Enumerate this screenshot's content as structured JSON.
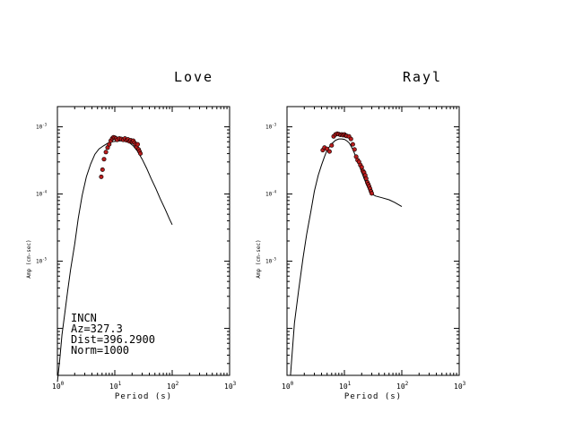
{
  "chart_data": [
    {
      "type": "scatter",
      "title": "Love",
      "xlabel": "Period (s)",
      "ylabel": "Amp (cm-sec)",
      "x_scale": "log",
      "y_scale": "log",
      "xlim": [
        1,
        1000
      ],
      "ylim": [
        2e-07,
        0.002
      ],
      "x_ticks": [
        "10",
        "10",
        "10",
        "10"
      ],
      "x_tick_exps": [
        "0",
        "1",
        "2",
        "3"
      ],
      "y_ticks": [
        "10",
        "10",
        "10"
      ],
      "y_tick_exps": [
        "-3",
        "-4",
        "-5"
      ],
      "annotations": [
        "INCN",
        "Az=327.3",
        "Dist=396.2900",
        "Norm=1000"
      ],
      "marker_color": "#b81c1c",
      "line_color": "#000000",
      "series": [
        {
          "kind": "line",
          "x": [
            1.0,
            1.1,
            1.2,
            1.35,
            1.5,
            1.7,
            2.0,
            2.3,
            2.7,
            3.2,
            3.8,
            4.5,
            5.3,
            6.3,
            7.5,
            9.0,
            10.5,
            12.5,
            15,
            18,
            21,
            25,
            30,
            36,
            43,
            52,
            62,
            75,
            90,
            100
          ],
          "y": [
            1.6e-07,
            3.4e-07,
            8e-07,
            1.7e-06,
            3.5e-06,
            7.5e-06,
            1.8e-05,
            4.3e-05,
            9.5e-05,
            0.00018,
            0.00028,
            0.00039,
            0.00047,
            0.00052,
            0.00057,
            0.0006,
            0.00061,
            0.00062,
            0.00061,
            0.00058,
            0.00052,
            0.00043,
            0.00033,
            0.00024,
            0.00017,
            0.00012,
            8.5e-05,
            6e-05,
            4.2e-05,
            3.5e-05
          ]
        },
        {
          "kind": "points",
          "x": [
            5.8,
            6.1,
            6.5,
            7.0,
            7.5,
            8.0,
            8.5,
            9.0,
            9.5,
            10.0,
            10.5,
            11.0,
            12.0,
            13.0,
            14.0,
            15.0,
            16.0,
            17.0,
            18.0,
            19.0,
            20.0,
            21.0,
            22.0,
            23.0,
            24.0,
            25.0,
            26.0,
            27.0,
            28.0
          ],
          "y": [
            0.00018,
            0.00023,
            0.00033,
            0.00042,
            0.00049,
            0.00055,
            0.00062,
            0.00067,
            0.0007,
            0.00069,
            0.00067,
            0.00064,
            0.00067,
            0.00066,
            0.00064,
            0.00067,
            0.00063,
            0.00065,
            0.00061,
            0.00063,
            0.0006,
            0.00062,
            0.00058,
            0.00055,
            0.0005,
            0.00055,
            0.00046,
            0.00043,
            0.0004
          ]
        }
      ]
    },
    {
      "type": "scatter",
      "title": "Rayl",
      "xlabel": "Period (s)",
      "ylabel": "Amp (cm-sec)",
      "x_scale": "log",
      "y_scale": "log",
      "xlim": [
        1,
        1000
      ],
      "ylim": [
        2e-07,
        0.002
      ],
      "x_ticks": [
        "10",
        "10",
        "10",
        "10"
      ],
      "x_tick_exps": [
        "0",
        "1",
        "2",
        "3"
      ],
      "y_ticks": [
        "10",
        "10",
        "10"
      ],
      "y_tick_exps": [
        "-3",
        "-4",
        "-5"
      ],
      "marker_color": "#b81c1c",
      "line_color": "#000000",
      "series": [
        {
          "kind": "line",
          "x": [
            1.15,
            1.35,
            1.6,
            1.9,
            2.2,
            2.6,
            3.0,
            3.5,
            4.0,
            4.5,
            5.0,
            6.0,
            7.0,
            8.0,
            9.0,
            10.0,
            11.0,
            12.0,
            13.0,
            14.0,
            15.0,
            16.0,
            17.0,
            18.0,
            19.0,
            20.0,
            21.0,
            22.0,
            23.0,
            24.0,
            25.0,
            26.0,
            27.0,
            28.0,
            29.0,
            30.0,
            35.0,
            45.0,
            60.0,
            75.0,
            100.0
          ],
          "y": [
            2e-07,
            1.2e-06,
            3.8e-06,
            1.1e-05,
            2.5e-05,
            5.5e-05,
            0.00011,
            0.00019,
            0.00027,
            0.00036,
            0.00045,
            0.00056,
            0.00063,
            0.00066,
            0.00066,
            0.00065,
            0.00062,
            0.00058,
            0.00052,
            0.00046,
            0.0004,
            0.00035,
            0.00031,
            0.00027,
            0.00024,
            0.00021,
            0.00019,
            0.00017,
            0.000155,
            0.00014,
            0.00013,
            0.00012,
            0.000112,
            0.000106,
            0.000102,
            0.0001,
            9.35e-05,
            8.8e-05,
            8.2e-05,
            7.5e-05,
            6.5e-05
          ]
        },
        {
          "kind": "points",
          "x": [
            4.2,
            4.5,
            5.0,
            5.5,
            6.0,
            6.5,
            7.0,
            7.5,
            8.0,
            8.5,
            9.0,
            9.5,
            10.0,
            10.5,
            11.0,
            12.0,
            13.0,
            14.0,
            15.0,
            16.0,
            17.0,
            18.0,
            19.0,
            20.0,
            21.0,
            22.0,
            23.0,
            24.0,
            25.0,
            26.0,
            27.0,
            28.0,
            29.0,
            30.0
          ],
          "y": [
            0.00045,
            0.00049,
            0.00047,
            0.00043,
            0.00053,
            0.00072,
            0.00077,
            0.00079,
            0.00078,
            0.00076,
            0.00077,
            0.00075,
            0.00077,
            0.00074,
            0.00073,
            0.00072,
            0.00066,
            0.00055,
            0.00046,
            0.00036,
            0.00032,
            0.0003,
            0.00027,
            0.00025,
            0.00022,
            0.00021,
            0.00019,
            0.00017,
            0.00015,
            0.00014,
            0.00013,
            0.00012,
            0.00011,
            0.000102
          ]
        }
      ]
    }
  ]
}
